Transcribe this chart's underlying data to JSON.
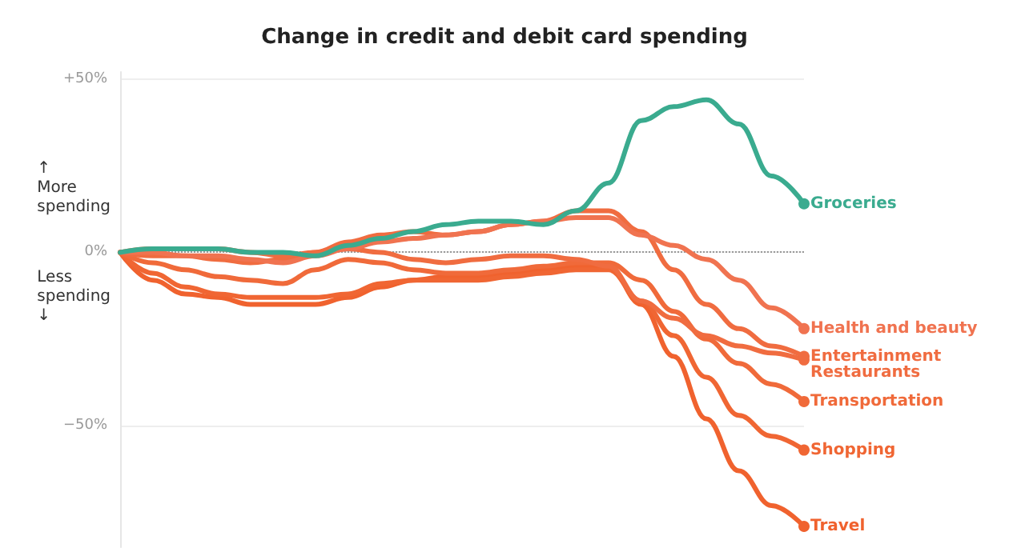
{
  "chart_data": {
    "type": "line",
    "title": "Change in credit and debit card spending",
    "categories": [
      null,
      null,
      null,
      null,
      null,
      null,
      null,
      null,
      null,
      null,
      null,
      null,
      null,
      null,
      null,
      null,
      null,
      null,
      null,
      null,
      null,
      null
    ],
    "series": [
      {
        "name": "Groceries",
        "color": "#3aab8f",
        "values": [
          0,
          1,
          1,
          1,
          0,
          0,
          -1,
          2,
          4,
          6,
          8,
          9,
          9,
          8,
          12,
          20,
          38,
          42,
          44,
          37,
          22,
          14
        ]
      },
      {
        "name": "Health and beauty",
        "color": "#f07350",
        "values": [
          0,
          0,
          -1,
          -1,
          -2,
          -3,
          -1,
          1,
          3,
          4,
          5,
          6,
          8,
          9,
          10,
          10,
          5,
          2,
          -2,
          -8,
          -16,
          -22
        ]
      },
      {
        "name": "Entertainment",
        "color": "#f06c40",
        "values": [
          0,
          1,
          1,
          1,
          0,
          -1,
          0,
          3,
          5,
          6,
          5,
          6,
          8,
          9,
          12,
          12,
          6,
          -5,
          -15,
          -22,
          -27,
          -30
        ]
      },
      {
        "name": "Restaurants",
        "color": "#f06c40",
        "values": [
          0,
          -1,
          -1,
          -2,
          -3,
          -2,
          0,
          1,
          0,
          -2,
          -3,
          -2,
          -1,
          -1,
          -2,
          -4,
          -14,
          -19,
          -24,
          -27,
          -29,
          -31
        ]
      },
      {
        "name": "Transportation",
        "color": "#f06a3a",
        "values": [
          0,
          -3,
          -5,
          -7,
          -8,
          -9,
          -5,
          -2,
          -3,
          -5,
          -6,
          -6,
          -5,
          -4,
          -3,
          -3,
          -8,
          -17,
          -25,
          -32,
          -38,
          -43
        ]
      },
      {
        "name": "Shopping",
        "color": "#f06633",
        "values": [
          0,
          -6,
          -10,
          -12,
          -13,
          -13,
          -13,
          -12,
          -9,
          -8,
          -8,
          -8,
          -7,
          -6,
          -5,
          -5,
          -14,
          -24,
          -36,
          -47,
          -53,
          -57
        ]
      },
      {
        "name": "Travel",
        "color": "#f0622e",
        "values": [
          0,
          -8,
          -12,
          -13,
          -15,
          -15,
          -15,
          -13,
          -10,
          -8,
          -7,
          -7,
          -6,
          -5,
          -4,
          -4,
          -15,
          -30,
          -48,
          -63,
          -73,
          -79
        ]
      }
    ],
    "ylim": [
      -85,
      52
    ],
    "yticks": [
      {
        "value": 50,
        "label": "+50%"
      },
      {
        "value": 0,
        "label": "0%"
      },
      {
        "value": -50,
        "label": "−50%"
      }
    ],
    "grid": "y",
    "ref_lines": [
      {
        "axis": "y",
        "value": 0,
        "line_style": "dotted",
        "color": "#999999"
      }
    ],
    "annotations": [
      "↑\nMore\nspending",
      "Less\nspending\n↓"
    ],
    "legend": false,
    "marker": "none",
    "line_style": "solid"
  }
}
